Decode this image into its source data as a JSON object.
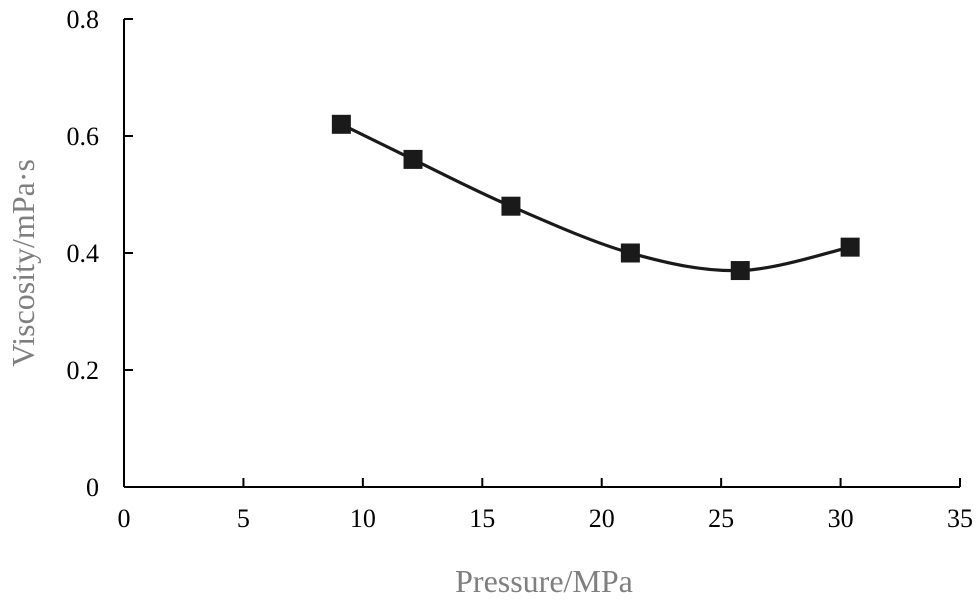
{
  "chart_data": {
    "type": "line",
    "title": "",
    "xlabel": "Pressure/MPa",
    "ylabel": "Viscosity/mPa·s",
    "xlim": [
      0,
      35
    ],
    "ylim": [
      0,
      0.8
    ],
    "x_ticks": [
      0,
      5,
      10,
      15,
      20,
      25,
      30,
      35
    ],
    "y_ticks": [
      0,
      0.2,
      0.4,
      0.6,
      0.8
    ],
    "x_tick_labels": [
      "0",
      "5",
      "10",
      "15",
      "20",
      "25",
      "30",
      "35"
    ],
    "y_tick_labels": [
      "0",
      "0.2",
      "0.4",
      "0.6",
      "0.8"
    ],
    "grid": false,
    "series": [
      {
        "name": "Viscosity",
        "marker": "square",
        "smooth": true,
        "color": "#1a1a1a",
        "x": [
          9.1,
          12.1,
          16.2,
          21.2,
          25.8,
          30.4
        ],
        "y": [
          0.62,
          0.56,
          0.48,
          0.4,
          0.37,
          0.41
        ]
      }
    ]
  },
  "colors": {
    "axis": "#000000",
    "tick_text": "#000000",
    "axis_title": "#7f7f7f",
    "series": "#1a1a1a"
  }
}
